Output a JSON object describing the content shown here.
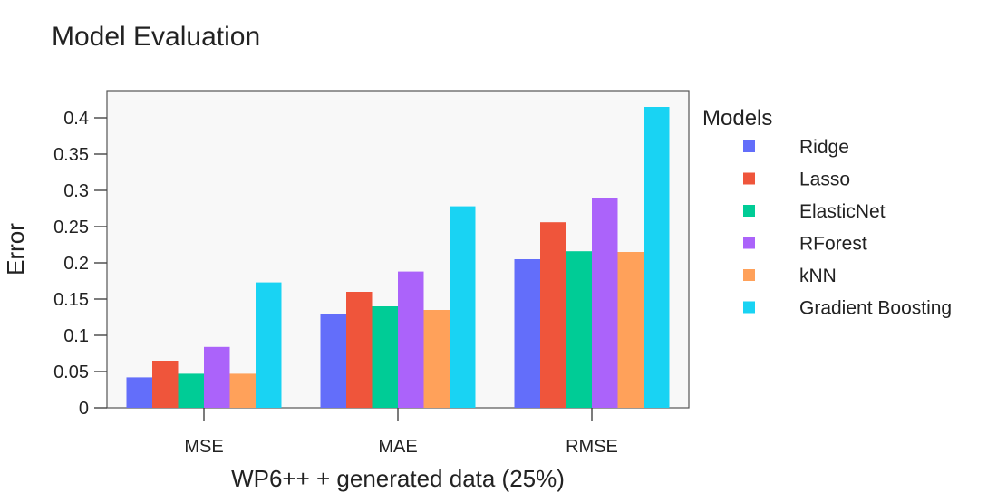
{
  "chart_data": {
    "type": "bar",
    "title": "Model Evaluation",
    "xlabel": "WP6++ + generated data (25%)",
    "ylabel": "Error",
    "categories": [
      "MSE",
      "MAE",
      "RMSE"
    ],
    "ylim": [
      0,
      0.42
    ],
    "yticks": [
      0,
      0.05,
      0.1,
      0.15,
      0.2,
      0.25,
      0.3,
      0.35,
      0.4
    ],
    "ytick_labels": [
      "0",
      "0.05",
      "0.1",
      "0.15",
      "0.2",
      "0.25",
      "0.3",
      "0.35",
      "0.4"
    ],
    "grid": false,
    "legend": {
      "title": "Models",
      "placement": "right"
    },
    "series": [
      {
        "name": "Ridge",
        "color": "#636EFA",
        "values": [
          0.042,
          0.13,
          0.205
        ]
      },
      {
        "name": "Lasso",
        "color": "#EF553B",
        "values": [
          0.065,
          0.16,
          0.256
        ]
      },
      {
        "name": "ElasticNet",
        "color": "#00CC96",
        "values": [
          0.047,
          0.14,
          0.216
        ]
      },
      {
        "name": "RForest",
        "color": "#AB63FA",
        "values": [
          0.084,
          0.188,
          0.29
        ]
      },
      {
        "name": "kNN",
        "color": "#FFA15A",
        "values": [
          0.047,
          0.135,
          0.215
        ]
      },
      {
        "name": "Gradient Boosting",
        "color": "#19D3F3",
        "values": [
          0.173,
          0.278,
          0.415
        ]
      }
    ]
  }
}
